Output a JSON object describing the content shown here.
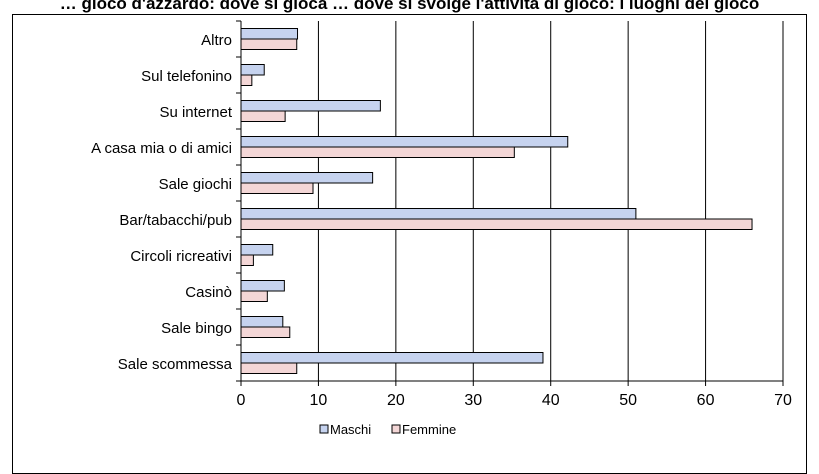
{
  "chart_data": {
    "type": "bar",
    "orientation": "horizontal",
    "title": "… gioco d'azzardo: dove si gioca … dove si svolge l'attività di gioco: i luoghi del gioco",
    "categories": [
      "Sale scommessa",
      "Sale bingo",
      "Casinò",
      "Circoli ricreativi",
      "Bar/tabacchi/pub",
      "Sale giochi",
      "A casa mia o di amici",
      "Su internet",
      "Sul telefonino",
      "Altro"
    ],
    "series": [
      {
        "name": "Maschi",
        "color": "#c6d3ef",
        "values": [
          39.0,
          5.4,
          5.6,
          4.1,
          51.0,
          17.0,
          42.2,
          18.0,
          3.0,
          7.3
        ]
      },
      {
        "name": "Femmine",
        "color": "#f3d6d6",
        "values": [
          7.2,
          6.3,
          3.4,
          1.6,
          66.0,
          9.3,
          35.3,
          5.7,
          1.4,
          7.2
        ]
      }
    ],
    "xlim": [
      0,
      70
    ],
    "xticks": [
      "0",
      "10",
      "20",
      "30",
      "40",
      "50",
      "60",
      "70"
    ],
    "xlabel": "",
    "ylabel": "",
    "grid": "vertical",
    "legend": "bottom",
    "bar_stroke": "#000000"
  }
}
